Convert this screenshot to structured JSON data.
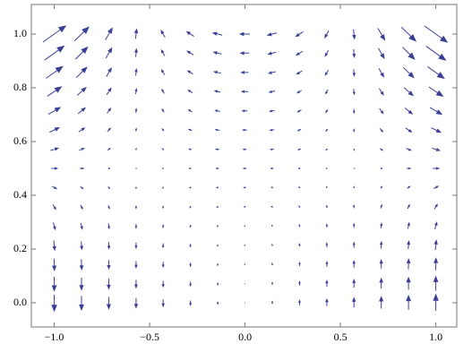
{
  "chart_data": {
    "type": "quiver",
    "color": "#3c3f96",
    "xlim": [
      -1.12,
      1.11
    ],
    "ylim": [
      -0.09,
      1.11
    ],
    "xticks": [
      {
        "value": -1,
        "label": "−1.0"
      },
      {
        "value": -0.5,
        "label": "−0.5"
      },
      {
        "value": 0,
        "label": "0.0"
      },
      {
        "value": 0.5,
        "label": "0.5"
      },
      {
        "value": 1,
        "label": "1.0"
      }
    ],
    "yticks": [
      {
        "value": 0,
        "label": "0.0"
      },
      {
        "value": 0.2,
        "label": "0.2"
      },
      {
        "value": 0.4,
        "label": "0.4"
      },
      {
        "value": 0.6,
        "label": "0.6"
      },
      {
        "value": 0.8,
        "label": "0.8"
      },
      {
        "value": 1,
        "label": "1.0"
      }
    ],
    "x": [
      -1,
      -0.857,
      -0.714,
      -0.571,
      -0.429,
      -0.286,
      -0.143,
      0,
      0.143,
      0.286,
      0.429,
      0.571,
      0.714,
      0.857,
      1
    ],
    "y": [
      0,
      0.071,
      0.143,
      0.214,
      0.286,
      0.357,
      0.429,
      0.5,
      0.571,
      0.643,
      0.714,
      0.786,
      0.857,
      0.929,
      1
    ],
    "u": [
      [
        0,
        0,
        0,
        0,
        0,
        0,
        0,
        0,
        0,
        0,
        0,
        0,
        0,
        0,
        0
      ],
      [
        0,
        0,
        0,
        0,
        0,
        0,
        0,
        0,
        0,
        0,
        0,
        0,
        0,
        0,
        0
      ],
      [
        0.01,
        0.01,
        0,
        0,
        0,
        0,
        -0.01,
        -0.01,
        -0.01,
        0,
        0,
        0,
        0,
        0.01,
        0.01
      ],
      [
        0.03,
        0.02,
        0.01,
        0,
        -0.01,
        -0.01,
        -0.01,
        -0.01,
        -0.01,
        -0.01,
        -0.01,
        0,
        0.01,
        0.02,
        0.03
      ],
      [
        0.06,
        0.04,
        0.02,
        0,
        -0.01,
        -0.02,
        -0.02,
        -0.02,
        -0.02,
        -0.02,
        -0.01,
        0,
        0.02,
        0.04,
        0.06
      ],
      [
        0.09,
        0.06,
        0.03,
        0,
        -0.01,
        -0.03,
        -0.04,
        -0.04,
        -0.04,
        -0.03,
        -0.01,
        0,
        0.03,
        0.06,
        0.09
      ],
      [
        0.13,
        0.08,
        0.04,
        0,
        -0.02,
        -0.04,
        -0.05,
        -0.06,
        -0.05,
        -0.04,
        -0.02,
        0,
        0.04,
        0.08,
        0.13
      ],
      [
        0.18,
        0.11,
        0.05,
        0.01,
        -0.03,
        -0.05,
        -0.07,
        -0.08,
        -0.07,
        -0.05,
        -0.03,
        0.01,
        0.05,
        0.11,
        0.18
      ],
      [
        0.23,
        0.14,
        0.07,
        0.01,
        -0.04,
        -0.07,
        -0.09,
        -0.1,
        -0.09,
        -0.07,
        -0.04,
        0.01,
        0.07,
        0.14,
        0.23
      ],
      [
        0.29,
        0.18,
        0.09,
        0.01,
        -0.05,
        -0.09,
        -0.12,
        -0.12,
        -0.12,
        -0.09,
        -0.05,
        0.01,
        0.09,
        0.18,
        0.29
      ],
      [
        0.36,
        0.22,
        0.11,
        0.01,
        -0.06,
        -0.11,
        -0.14,
        -0.15,
        -0.14,
        -0.11,
        -0.06,
        0.01,
        0.11,
        0.22,
        0.36
      ],
      [
        0.43,
        0.27,
        0.13,
        0.02,
        -0.07,
        -0.13,
        -0.17,
        -0.19,
        -0.17,
        -0.13,
        -0.07,
        0.02,
        0.13,
        0.27,
        0.43
      ],
      [
        0.51,
        0.32,
        0.15,
        0.02,
        -0.09,
        -0.16,
        -0.21,
        -0.22,
        -0.21,
        -0.16,
        -0.09,
        0.02,
        0.15,
        0.32,
        0.51
      ],
      [
        0.6,
        0.37,
        0.18,
        0.02,
        -0.1,
        -0.19,
        -0.24,
        -0.26,
        -0.24,
        -0.19,
        -0.1,
        0.02,
        0.18,
        0.37,
        0.6
      ],
      [
        0.7,
        0.44,
        0.21,
        0.03,
        -0.12,
        -0.22,
        -0.28,
        -0.3,
        -0.28,
        -0.22,
        -0.12,
        0.03,
        0.21,
        0.44,
        0.7
      ]
    ],
    "v": [
      [
        -0.5,
        -0.43,
        -0.36,
        -0.29,
        -0.21,
        -0.14,
        -0.07,
        0,
        0.07,
        0.14,
        0.21,
        0.29,
        0.36,
        0.43,
        0.5
      ],
      [
        -0.43,
        -0.37,
        -0.31,
        -0.24,
        -0.18,
        -0.12,
        -0.06,
        0,
        0.06,
        0.12,
        0.18,
        0.24,
        0.31,
        0.37,
        0.43
      ],
      [
        -0.36,
        -0.31,
        -0.26,
        -0.2,
        -0.15,
        -0.1,
        -0.05,
        0,
        0.05,
        0.1,
        0.15,
        0.2,
        0.26,
        0.31,
        0.36
      ],
      [
        -0.29,
        -0.24,
        -0.2,
        -0.16,
        -0.12,
        -0.08,
        -0.04,
        0,
        0.04,
        0.08,
        0.12,
        0.16,
        0.2,
        0.24,
        0.29
      ],
      [
        -0.21,
        -0.18,
        -0.15,
        -0.12,
        -0.09,
        -0.06,
        -0.03,
        0,
        0.03,
        0.06,
        0.09,
        0.12,
        0.15,
        0.18,
        0.21
      ],
      [
        -0.14,
        -0.12,
        -0.1,
        -0.08,
        -0.06,
        -0.04,
        -0.02,
        0,
        0.02,
        0.04,
        0.06,
        0.08,
        0.1,
        0.12,
        0.14
      ],
      [
        -0.07,
        -0.06,
        -0.05,
        -0.04,
        -0.03,
        -0.02,
        -0.01,
        0,
        0.01,
        0.02,
        0.03,
        0.04,
        0.05,
        0.06,
        0.07
      ],
      [
        0,
        0,
        0,
        0,
        0,
        0,
        0,
        0,
        0,
        0,
        0,
        0,
        0,
        0,
        0
      ],
      [
        0.07,
        0.06,
        0.05,
        0.04,
        0.03,
        0.02,
        0.01,
        0,
        -0.01,
        -0.02,
        -0.03,
        -0.04,
        -0.05,
        -0.06,
        -0.07
      ],
      [
        0.14,
        0.12,
        0.1,
        0.08,
        0.06,
        0.04,
        0.02,
        0,
        -0.02,
        -0.04,
        -0.06,
        -0.08,
        -0.1,
        -0.12,
        -0.14
      ],
      [
        0.21,
        0.18,
        0.15,
        0.12,
        0.09,
        0.06,
        0.03,
        0,
        -0.03,
        -0.06,
        -0.09,
        -0.12,
        -0.15,
        -0.18,
        -0.21
      ],
      [
        0.29,
        0.24,
        0.2,
        0.16,
        0.12,
        0.08,
        0.04,
        0,
        -0.04,
        -0.08,
        -0.12,
        -0.16,
        -0.2,
        -0.24,
        -0.29
      ],
      [
        0.36,
        0.31,
        0.26,
        0.2,
        0.15,
        0.1,
        0.05,
        0,
        -0.05,
        -0.1,
        -0.15,
        -0.2,
        -0.26,
        -0.31,
        -0.36
      ],
      [
        0.43,
        0.37,
        0.31,
        0.24,
        0.18,
        0.12,
        0.06,
        0,
        -0.06,
        -0.12,
        -0.18,
        -0.24,
        -0.31,
        -0.37,
        -0.43
      ],
      [
        0.5,
        0.43,
        0.36,
        0.29,
        0.21,
        0.14,
        0.07,
        0,
        -0.07,
        -0.14,
        -0.21,
        -0.29,
        -0.36,
        -0.43,
        -0.5
      ]
    ]
  }
}
